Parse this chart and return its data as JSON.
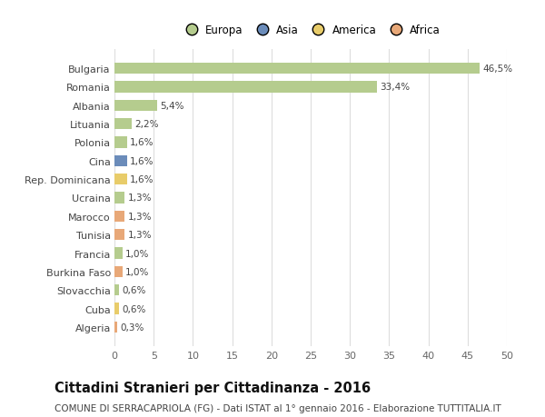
{
  "categories": [
    "Bulgaria",
    "Romania",
    "Albania",
    "Lituania",
    "Polonia",
    "Cina",
    "Rep. Dominicana",
    "Ucraina",
    "Marocco",
    "Tunisia",
    "Francia",
    "Burkina Faso",
    "Slovacchia",
    "Cuba",
    "Algeria"
  ],
  "values": [
    46.5,
    33.4,
    5.4,
    2.2,
    1.6,
    1.6,
    1.6,
    1.3,
    1.3,
    1.3,
    1.0,
    1.0,
    0.6,
    0.6,
    0.3
  ],
  "labels": [
    "46,5%",
    "33,4%",
    "5,4%",
    "2,2%",
    "1,6%",
    "1,6%",
    "1,6%",
    "1,3%",
    "1,3%",
    "1,3%",
    "1,0%",
    "1,0%",
    "0,6%",
    "0,6%",
    "0,3%"
  ],
  "colors": [
    "#b5cc8e",
    "#b5cc8e",
    "#b5cc8e",
    "#b5cc8e",
    "#b5cc8e",
    "#6b8cba",
    "#e8cc6a",
    "#b5cc8e",
    "#e8a878",
    "#e8a878",
    "#b5cc8e",
    "#e8a878",
    "#b5cc8e",
    "#e8cc6a",
    "#e8a878"
  ],
  "legend_labels": [
    "Europa",
    "Asia",
    "America",
    "Africa"
  ],
  "legend_colors": [
    "#b5cc8e",
    "#6b8cba",
    "#e8cc6a",
    "#e8a878"
  ],
  "xlim": [
    0,
    50
  ],
  "xticks": [
    0,
    5,
    10,
    15,
    20,
    25,
    30,
    35,
    40,
    45,
    50
  ],
  "title": "Cittadini Stranieri per Cittadinanza - 2016",
  "subtitle": "COMUNE DI SERRACAPRIOLA (FG) - Dati ISTAT al 1° gennaio 2016 - Elaborazione TUTTITALIA.IT",
  "bg_color": "#ffffff",
  "grid_color": "#dddddd",
  "bar_height": 0.6,
  "title_fontsize": 10.5,
  "subtitle_fontsize": 7.5,
  "tick_fontsize": 8,
  "label_fontsize": 7.5,
  "legend_fontsize": 8.5
}
